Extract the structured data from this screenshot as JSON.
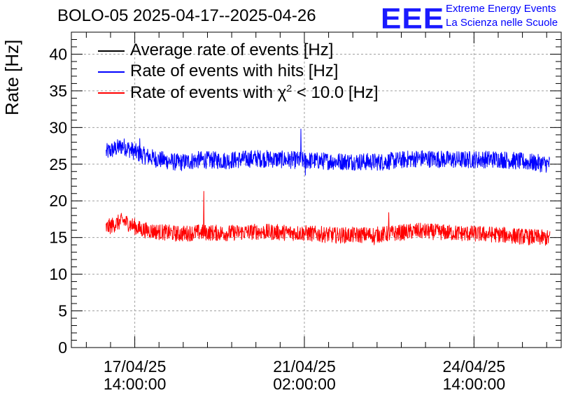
{
  "header": {
    "title": "BOLO-05 2025-04-17--2025-04-26",
    "logo_text": "EEE",
    "logo_line1": "Extreme Energy Events",
    "logo_line2": "La Scienza nelle Scuole"
  },
  "chart_data": {
    "type": "line",
    "title": "BOLO-05 2025-04-17--2025-04-26",
    "xlabel": "",
    "ylabel": "Rate [Hz]",
    "ylim": [
      0,
      43
    ],
    "yticks": [
      0,
      5,
      10,
      15,
      20,
      25,
      30,
      35,
      40
    ],
    "xrange_hours": [
      -31.4,
      211.2
    ],
    "xticks": [
      {
        "t_hours": 0,
        "line1": "17/04/25",
        "line2": "14:00:00"
      },
      {
        "t_hours": 84,
        "line1": "21/04/25",
        "line2": "02:00:00"
      },
      {
        "t_hours": 168,
        "line1": "24/04/25",
        "line2": "14:00:00"
      }
    ],
    "x_start_hours": -14.2,
    "x_end_hours": 205.6,
    "grid": true,
    "legend": {
      "position": "top-left",
      "entries": [
        {
          "name": "Average rate of events [Hz]",
          "color": "#000000"
        },
        {
          "name": "Rate of events with hits [Hz]",
          "color": "#0000ff"
        },
        {
          "name_prefix": "Rate of events with ",
          "name_symbol": "χ",
          "name_sup": "2",
          "name_suffix": " < 10.0 [Hz]",
          "color": "#ff0000"
        }
      ]
    },
    "series": [
      {
        "name": "Rate of events with hits [Hz]",
        "color": "#0000ff",
        "baseline": [
          [
            -14.2,
            26.6
          ],
          [
            -6,
            27.5
          ],
          [
            3,
            26.3
          ],
          [
            11,
            25.7
          ],
          [
            22,
            25.2
          ],
          [
            32,
            25.6
          ],
          [
            45,
            25.5
          ],
          [
            60,
            25.8
          ],
          [
            84,
            25.5
          ],
          [
            100,
            25.4
          ],
          [
            122,
            25.3
          ],
          [
            140,
            25.8
          ],
          [
            160,
            25.6
          ],
          [
            180,
            25.7
          ],
          [
            194,
            25.3
          ],
          [
            205.6,
            25.0
          ]
        ],
        "noise": 1.2,
        "spikes": [
          [
            82.2,
            29.8
          ],
          [
            84.5,
            23.5
          ],
          [
            2.5,
            28.5
          ]
        ]
      },
      {
        "name": "Rate of events with χ² < 10.0 [Hz]",
        "color": "#ff0000",
        "baseline": [
          [
            -14.2,
            16.3
          ],
          [
            -6,
            17.3
          ],
          [
            3,
            16.1
          ],
          [
            11,
            15.8
          ],
          [
            22,
            15.5
          ],
          [
            32,
            15.7
          ],
          [
            45,
            15.6
          ],
          [
            60,
            15.8
          ],
          [
            84,
            15.6
          ],
          [
            100,
            15.3
          ],
          [
            122,
            15.4
          ],
          [
            140,
            15.9
          ],
          [
            160,
            15.6
          ],
          [
            180,
            15.4
          ],
          [
            194,
            15.1
          ],
          [
            205.6,
            14.9
          ]
        ],
        "noise": 1.1,
        "spikes": [
          [
            34.2,
            21.3
          ],
          [
            125.8,
            18.4
          ],
          [
            118.5,
            14.0
          ]
        ]
      }
    ]
  },
  "colors": {
    "hits": "#0000ff",
    "chi2": "#ff0000",
    "average": "#000000",
    "logo": "#1a1aff"
  }
}
